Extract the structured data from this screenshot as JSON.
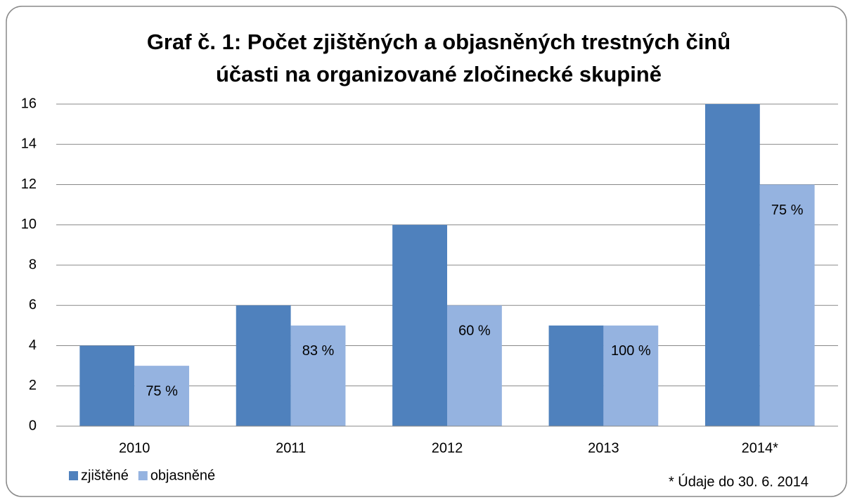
{
  "chart_data": {
    "type": "bar",
    "title_lines": [
      "Graf č. 1:  Počet zjištěných a objasněných trestných činů",
      "účasti na organizované zločinecké skupině"
    ],
    "categories": [
      "2010",
      "2011",
      "2012",
      "2013",
      "2014*"
    ],
    "series": [
      {
        "name": "zjištěné",
        "color": "#4f81bd",
        "values": [
          4,
          6,
          10,
          5,
          16
        ]
      },
      {
        "name": "objasněné",
        "color": "#95b3e0",
        "values": [
          3,
          5,
          6,
          5,
          12
        ],
        "annotations": [
          "75 %",
          "83 %",
          "60 %",
          "100 %",
          "75 %"
        ]
      }
    ],
    "ylim": [
      0,
      16
    ],
    "yticks": [
      0,
      2,
      4,
      6,
      8,
      10,
      12,
      14,
      16
    ],
    "grid": true,
    "footnote": "* Údaje do 30. 6. 2014"
  }
}
